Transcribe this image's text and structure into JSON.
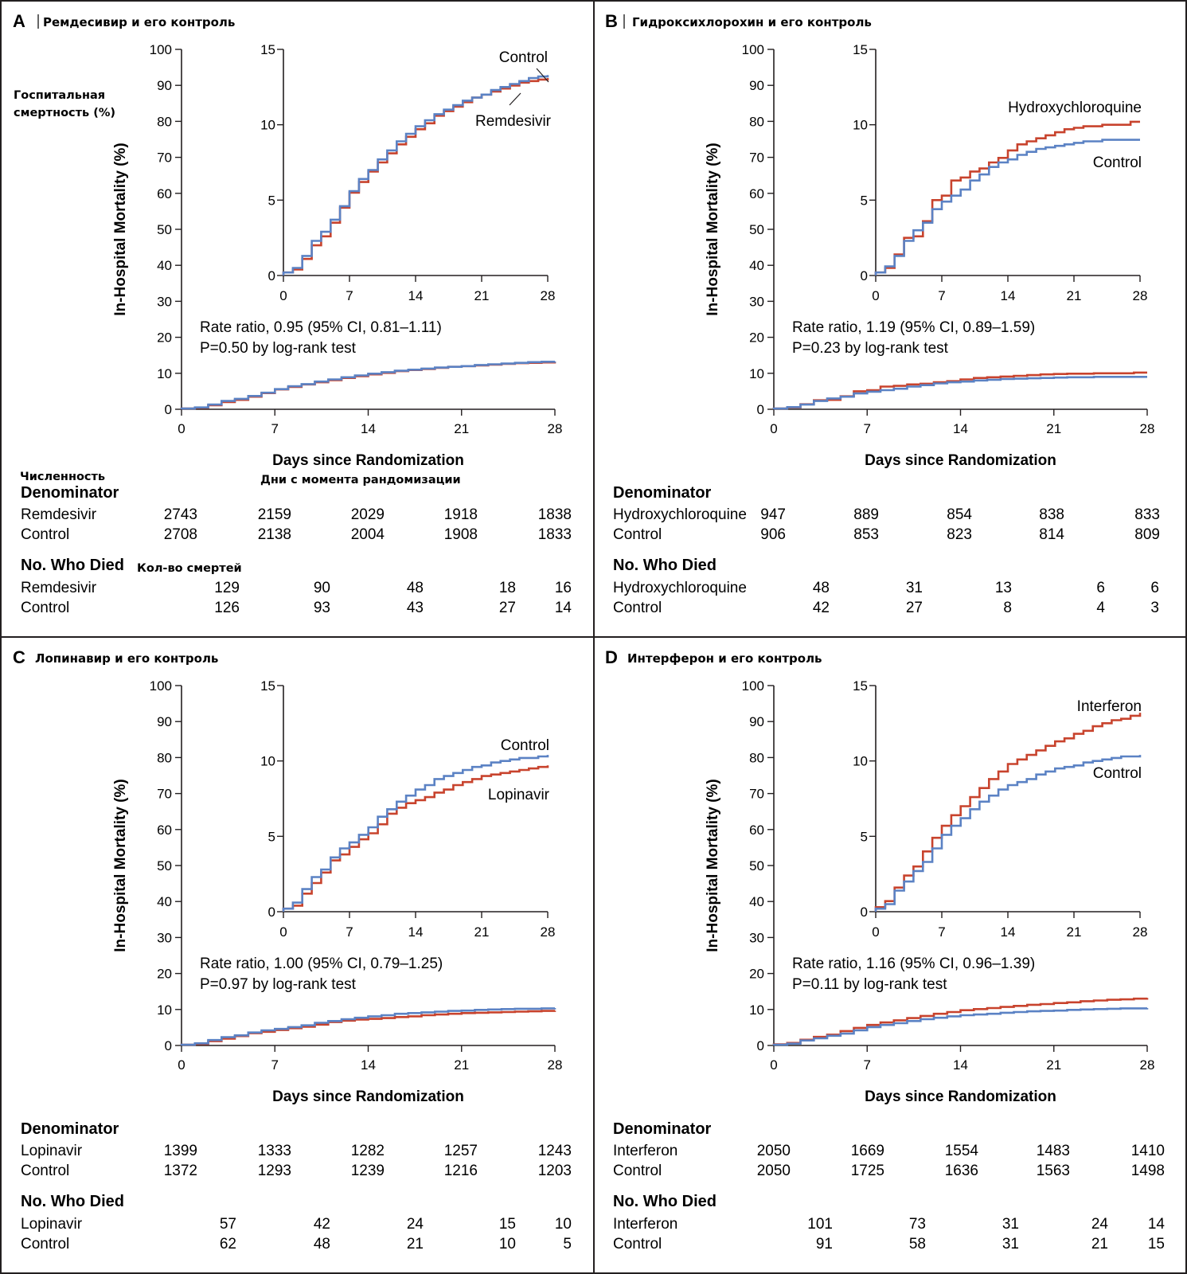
{
  "colors": {
    "treatment": "#c8432d",
    "control": "#5b82c4",
    "axis": "#231f20",
    "frame": "#231f20"
  },
  "x_ticks": [
    "0",
    "7",
    "14",
    "21",
    "28"
  ],
  "main_y_ticks": [
    "0",
    "10",
    "20",
    "30",
    "40",
    "50",
    "60",
    "70",
    "80",
    "90",
    "100"
  ],
  "inset_y_ticks": [
    "0",
    "5",
    "10",
    "15"
  ],
  "y_axis_title": "In-Hospital Mortality (%)",
  "x_axis_title": "Days since Randomization",
  "table_labels": {
    "denominator": "Denominator",
    "died": "No. Who Died"
  },
  "ru_labels": {
    "y_axis": [
      "Госпитальная",
      "смертность (%)"
    ],
    "count": "Численность",
    "days": "Дни с момента рандомизации",
    "died": "Кол-во смертей"
  },
  "chart_data": [
    {
      "type": "line",
      "panel": "A",
      "title": "Ремдесивир и его контроль",
      "xlabel": "Days since Randomization",
      "ylabel": "In-Hospital Mortality (%)",
      "x_ticks": [
        0,
        7,
        14,
        21,
        28
      ],
      "ylim": [
        0,
        100
      ],
      "inset_ylim": [
        0,
        15
      ],
      "rate_ratio": "Rate ratio, 0.95 (95% CI, 0.81–1.11)",
      "p_value": "P=0.50 by log-rank test",
      "series": [
        {
          "name": "Remdesivir",
          "role": "treatment",
          "x": [
            0,
            1,
            2,
            3,
            4,
            5,
            6,
            7,
            8,
            9,
            10,
            11,
            12,
            13,
            14,
            15,
            16,
            17,
            18,
            19,
            20,
            21,
            22,
            23,
            24,
            25,
            26,
            27,
            28
          ],
          "y": [
            0.2,
            0.4,
            1.1,
            2.0,
            2.6,
            3.5,
            4.5,
            5.5,
            6.2,
            6.9,
            7.5,
            8.1,
            8.7,
            9.2,
            9.7,
            10.1,
            10.6,
            10.9,
            11.2,
            11.5,
            11.8,
            12.0,
            12.2,
            12.4,
            12.6,
            12.8,
            12.9,
            13.0,
            13.1
          ]
        },
        {
          "name": "Control",
          "role": "control",
          "x": [
            0,
            1,
            2,
            3,
            4,
            5,
            6,
            7,
            8,
            9,
            10,
            11,
            12,
            13,
            14,
            15,
            16,
            17,
            18,
            19,
            20,
            21,
            22,
            23,
            24,
            25,
            26,
            27,
            28
          ],
          "y": [
            0.2,
            0.5,
            1.3,
            2.3,
            2.9,
            3.7,
            4.6,
            5.6,
            6.4,
            7.0,
            7.7,
            8.3,
            8.9,
            9.4,
            9.9,
            10.3,
            10.7,
            11.0,
            11.3,
            11.6,
            11.8,
            12.0,
            12.3,
            12.5,
            12.7,
            12.9,
            13.1,
            13.2,
            13.3
          ]
        }
      ],
      "labels": {
        "upper": "Control",
        "lower": "Remdesivir"
      },
      "table": {
        "denominator": [
          {
            "name": "Remdesivir",
            "values": [
              2743,
              2159,
              2029,
              1918,
              1838
            ]
          },
          {
            "name": "Control",
            "values": [
              2708,
              2138,
              2004,
              1908,
              1833
            ]
          }
        ],
        "died": [
          {
            "name": "Remdesivir",
            "values": [
              129,
              90,
              48,
              18,
              16
            ]
          },
          {
            "name": "Control",
            "values": [
              126,
              93,
              43,
              27,
              14
            ]
          }
        ]
      }
    },
    {
      "type": "line",
      "panel": "B",
      "title": "Гидроксихлорохин и его контроль",
      "xlabel": "Days since Randomization",
      "ylabel": "In-Hospital Mortality (%)",
      "x_ticks": [
        0,
        7,
        14,
        21,
        28
      ],
      "ylim": [
        0,
        100
      ],
      "inset_ylim": [
        0,
        15
      ],
      "rate_ratio": "Rate ratio, 1.19 (95% CI, 0.89–1.59)",
      "p_value": "P=0.23 by log-rank test",
      "series": [
        {
          "name": "Hydroxychloroquine",
          "role": "treatment",
          "x": [
            0,
            1,
            2,
            3,
            4,
            5,
            6,
            7,
            8,
            9,
            10,
            11,
            12,
            13,
            14,
            15,
            16,
            17,
            18,
            19,
            20,
            21,
            22,
            23,
            24,
            25,
            26,
            27,
            28
          ],
          "y": [
            0.2,
            0.5,
            1.4,
            2.5,
            2.6,
            3.6,
            5.0,
            5.3,
            6.3,
            6.5,
            6.9,
            7.1,
            7.5,
            7.8,
            8.3,
            8.7,
            8.9,
            9.1,
            9.3,
            9.5,
            9.7,
            9.8,
            9.9,
            9.9,
            10.0,
            10.0,
            10.0,
            10.2,
            10.2
          ]
        },
        {
          "name": "Control",
          "role": "control",
          "x": [
            0,
            1,
            2,
            3,
            4,
            5,
            6,
            7,
            8,
            9,
            10,
            11,
            12,
            13,
            14,
            15,
            16,
            17,
            18,
            19,
            20,
            21,
            22,
            23,
            24,
            25,
            26,
            27,
            28
          ],
          "y": [
            0.2,
            0.6,
            1.3,
            2.3,
            3.0,
            3.5,
            4.4,
            4.9,
            5.3,
            5.7,
            6.3,
            6.7,
            7.2,
            7.5,
            7.7,
            8.0,
            8.2,
            8.4,
            8.5,
            8.6,
            8.7,
            8.8,
            8.9,
            8.9,
            9.0,
            9.0,
            9.0,
            9.0,
            9.0
          ]
        }
      ],
      "labels": {
        "upper": "Hydroxychloroquine",
        "lower": "Control"
      },
      "table": {
        "denominator": [
          {
            "name": "Hydroxychloroquine",
            "values": [
              947,
              889,
              854,
              838,
              833
            ]
          },
          {
            "name": "Control",
            "values": [
              906,
              853,
              823,
              814,
              809
            ]
          }
        ],
        "died": [
          {
            "name": "Hydroxychloroquine",
            "values": [
              48,
              31,
              13,
              6,
              6
            ]
          },
          {
            "name": "Control",
            "values": [
              42,
              27,
              8,
              4,
              3
            ]
          }
        ]
      }
    },
    {
      "type": "line",
      "panel": "C",
      "title": "Лопинавир и его контроль",
      "xlabel": "Days since Randomization",
      "ylabel": "In-Hospital Mortality (%)",
      "x_ticks": [
        0,
        7,
        14,
        21,
        28
      ],
      "ylim": [
        0,
        100
      ],
      "inset_ylim": [
        0,
        15
      ],
      "rate_ratio": "Rate ratio, 1.00 (95% CI, 0.79–1.25)",
      "p_value": "P=0.97 by log-rank test",
      "series": [
        {
          "name": "Lopinavir",
          "role": "treatment",
          "x": [
            0,
            1,
            2,
            3,
            4,
            5,
            6,
            7,
            8,
            9,
            10,
            11,
            12,
            13,
            14,
            15,
            16,
            17,
            18,
            19,
            20,
            21,
            22,
            23,
            24,
            25,
            26,
            27,
            28
          ],
          "y": [
            0.2,
            0.4,
            1.2,
            1.9,
            2.6,
            3.4,
            3.8,
            4.3,
            4.8,
            5.2,
            5.8,
            6.5,
            6.9,
            7.2,
            7.4,
            7.6,
            7.9,
            8.1,
            8.4,
            8.6,
            8.8,
            9.0,
            9.1,
            9.2,
            9.3,
            9.4,
            9.5,
            9.6,
            9.7
          ]
        },
        {
          "name": "Control",
          "role": "control",
          "x": [
            0,
            1,
            2,
            3,
            4,
            5,
            6,
            7,
            8,
            9,
            10,
            11,
            12,
            13,
            14,
            15,
            16,
            17,
            18,
            19,
            20,
            21,
            22,
            23,
            24,
            25,
            26,
            27,
            28
          ],
          "y": [
            0.2,
            0.6,
            1.5,
            2.3,
            2.8,
            3.6,
            4.2,
            4.6,
            5.1,
            5.6,
            6.3,
            6.8,
            7.3,
            7.7,
            8.1,
            8.4,
            8.8,
            9.0,
            9.2,
            9.4,
            9.6,
            9.7,
            9.9,
            10.0,
            10.1,
            10.2,
            10.2,
            10.3,
            10.4
          ]
        }
      ],
      "labels": {
        "upper": "Control",
        "lower": "Lopinavir"
      },
      "table": {
        "denominator": [
          {
            "name": "Lopinavir",
            "values": [
              1399,
              1333,
              1282,
              1257,
              1243
            ]
          },
          {
            "name": "Control",
            "values": [
              1372,
              1293,
              1239,
              1216,
              1203
            ]
          }
        ],
        "died": [
          {
            "name": "Lopinavir",
            "values": [
              57,
              42,
              24,
              15,
              10
            ]
          },
          {
            "name": "Control",
            "values": [
              62,
              48,
              21,
              10,
              5
            ]
          }
        ]
      }
    },
    {
      "type": "line",
      "panel": "D",
      "title": "Интерферон и его контроль",
      "xlabel": "Days since Randomization",
      "ylabel": "In-Hospital Mortality (%)",
      "x_ticks": [
        0,
        7,
        14,
        21,
        28
      ],
      "ylim": [
        0,
        100
      ],
      "inset_ylim": [
        0,
        15
      ],
      "rate_ratio": "Rate ratio, 1.16 (95% CI, 0.96–1.39)",
      "p_value": "P=0.11 by log-rank test",
      "series": [
        {
          "name": "Interferon",
          "role": "treatment",
          "x": [
            0,
            1,
            2,
            3,
            4,
            5,
            6,
            7,
            8,
            9,
            10,
            11,
            12,
            13,
            14,
            15,
            16,
            17,
            18,
            19,
            20,
            21,
            22,
            23,
            24,
            25,
            26,
            27,
            28
          ],
          "y": [
            0.3,
            0.7,
            1.6,
            2.4,
            3.0,
            4.0,
            4.9,
            5.7,
            6.4,
            7.0,
            7.6,
            8.2,
            8.8,
            9.3,
            9.8,
            10.1,
            10.4,
            10.7,
            11.0,
            11.3,
            11.5,
            11.8,
            12.0,
            12.3,
            12.5,
            12.7,
            12.8,
            13.0,
            13.2
          ]
        },
        {
          "name": "Control",
          "role": "control",
          "x": [
            0,
            1,
            2,
            3,
            4,
            5,
            6,
            7,
            8,
            9,
            10,
            11,
            12,
            13,
            14,
            15,
            16,
            17,
            18,
            19,
            20,
            21,
            22,
            23,
            24,
            25,
            26,
            27,
            28
          ],
          "y": [
            0.2,
            0.5,
            1.4,
            2.0,
            2.7,
            3.3,
            4.2,
            5.1,
            5.7,
            6.2,
            6.8,
            7.3,
            7.7,
            8.1,
            8.4,
            8.6,
            8.8,
            9.1,
            9.3,
            9.5,
            9.6,
            9.7,
            9.9,
            10.0,
            10.1,
            10.2,
            10.3,
            10.3,
            10.4
          ]
        }
      ],
      "labels": {
        "upper": "Interferon",
        "lower": "Control"
      },
      "table": {
        "denominator": [
          {
            "name": "Interferon",
            "values": [
              2050,
              1669,
              1554,
              1483,
              1410
            ]
          },
          {
            "name": "Control",
            "values": [
              2050,
              1725,
              1636,
              1563,
              1498
            ]
          }
        ],
        "died": [
          {
            "name": "Interferon",
            "values": [
              101,
              73,
              31,
              24,
              14
            ]
          },
          {
            "name": "Control",
            "values": [
              91,
              58,
              31,
              21,
              15
            ]
          }
        ]
      }
    }
  ]
}
